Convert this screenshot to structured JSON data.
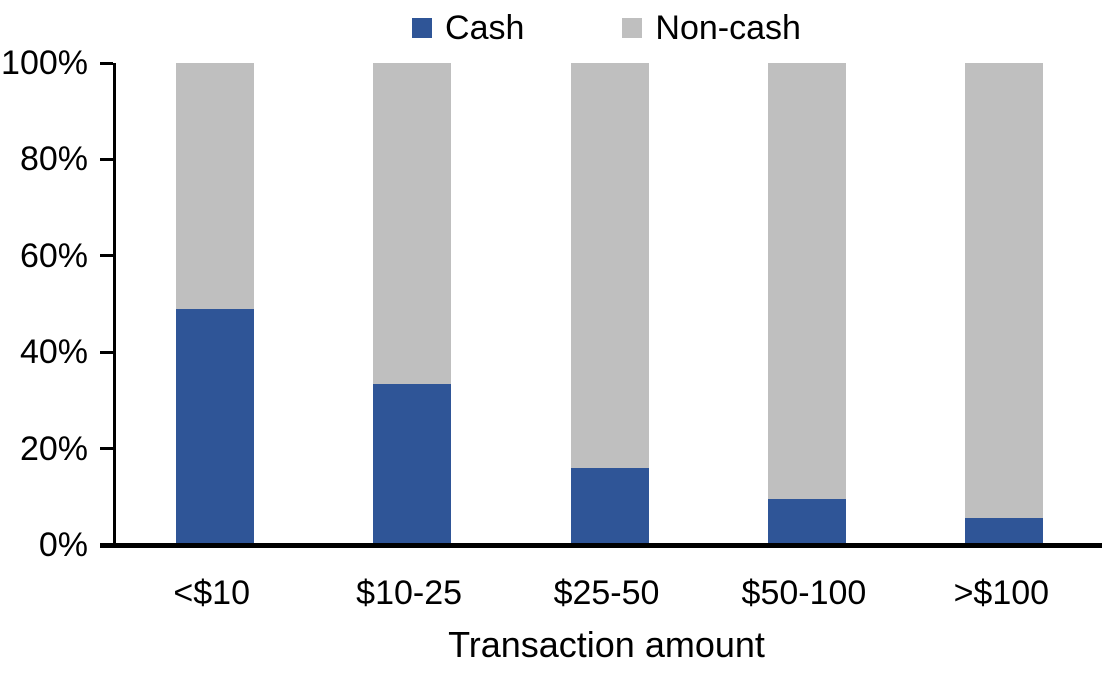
{
  "chart_data": {
    "type": "bar",
    "stacked": true,
    "percent_stacked": true,
    "categories": [
      "<$10",
      "$10-25",
      "$25-50",
      "$50-100",
      ">$100"
    ],
    "series": [
      {
        "name": "Cash",
        "color": "#2F5597",
        "values": [
          49,
          33.5,
          16,
          9.5,
          5.5
        ]
      },
      {
        "name": "Non-cash",
        "color": "#BFBFBF",
        "values": [
          51,
          66.5,
          84,
          90.5,
          94.5
        ]
      }
    ],
    "title": "",
    "xlabel": "Transaction amount",
    "ylabel": "",
    "ylim": [
      0,
      100
    ],
    "yticks": [
      "0%",
      "20%",
      "40%",
      "60%",
      "80%",
      "100%"
    ],
    "grid": false,
    "legend_position": "top",
    "axis_color": "#000000",
    "background_color": "#FFFFFF"
  }
}
